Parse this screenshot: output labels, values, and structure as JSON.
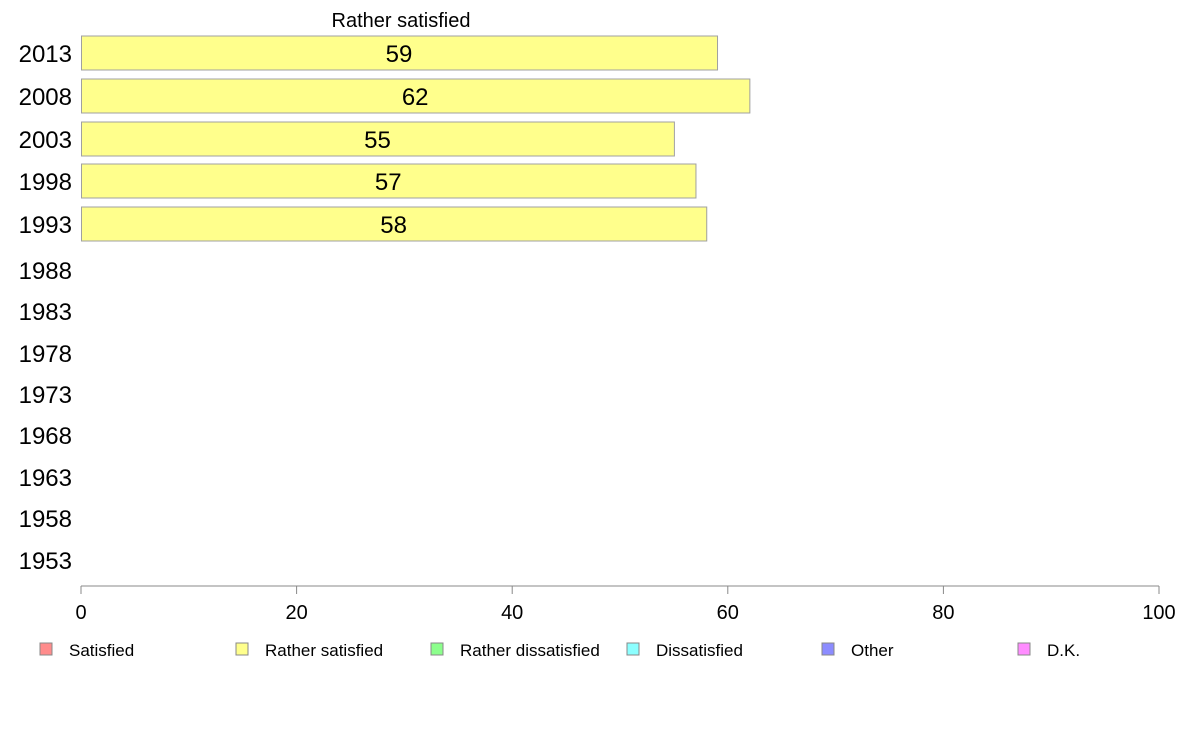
{
  "chart_data": {
    "type": "bar",
    "orientation": "horizontal",
    "title": "Rather satisfied",
    "categories": [
      "2013",
      "2008",
      "2003",
      "1998",
      "1993",
      "1988",
      "1983",
      "1978",
      "1973",
      "1968",
      "1963",
      "1958",
      "1953"
    ],
    "series": [
      {
        "name": "Rather satisfied",
        "values": [
          59,
          62,
          55,
          57,
          58,
          null,
          null,
          null,
          null,
          null,
          null,
          null,
          null
        ]
      }
    ],
    "xlim": [
      0,
      100
    ],
    "xticks": [
      "0",
      "20",
      "40",
      "60",
      "80",
      "100"
    ],
    "grid": false,
    "legend_position": "bottom",
    "legend": [
      {
        "name": "Satisfied",
        "color": "#ff8c8c"
      },
      {
        "name": "Rather satisfied",
        "color": "#ffff8c"
      },
      {
        "name": "Rather dissatisfied",
        "color": "#8cff8c"
      },
      {
        "name": "Dissatisfied",
        "color": "#8cffff"
      },
      {
        "name": "Other",
        "color": "#8c8cff"
      },
      {
        "name": "D.K.",
        "color": "#ff8cff"
      }
    ],
    "bar_color": "#ffff8c"
  }
}
